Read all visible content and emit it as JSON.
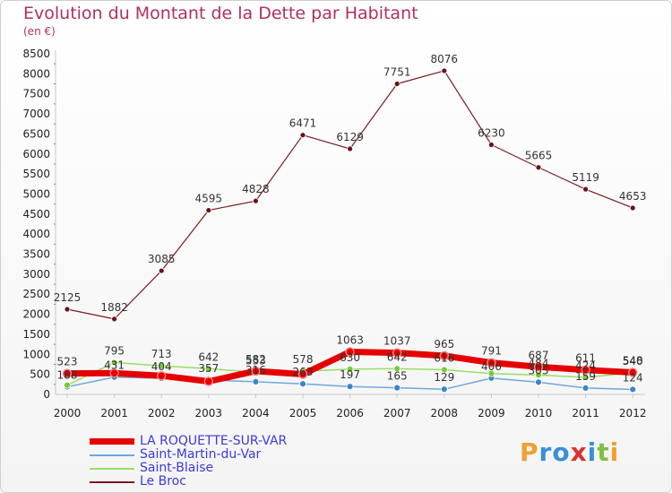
{
  "header": {
    "title": "Evolution du Montant de la Dette par Habitant",
    "unit": "(en €)"
  },
  "logo": {
    "letters": [
      "P",
      "r",
      "o",
      "x",
      "i",
      "t",
      "i"
    ],
    "colors": [
      "#f0a030",
      "#3a8fd8",
      "#3a8fd8",
      "#e03030",
      "#3a8fd8",
      "#80c040",
      "#f0a030"
    ]
  },
  "chart_data": {
    "type": "line",
    "title": "Evolution du Montant de la Dette par Habitant",
    "ylabel": "(en €)",
    "xlabel": "",
    "x": [
      "2000",
      "2001",
      "2002",
      "2003",
      "2004",
      "2005",
      "2006",
      "2007",
      "2008",
      "2009",
      "2010",
      "2011",
      "2012"
    ],
    "ylim": [
      0,
      8500
    ],
    "yticks": [
      0,
      500,
      1000,
      1500,
      2000,
      2500,
      3000,
      3500,
      4000,
      4500,
      5000,
      5500,
      6000,
      6500,
      7000,
      7500,
      8000,
      8500
    ],
    "grid": false,
    "legend_position": "bottom-left",
    "series": [
      {
        "name": "LA ROQUETTE-SUR-VAR",
        "color": "#e60000",
        "values": [
          523,
          531,
          465,
          324,
          582,
          503,
          1063,
          1037,
          965,
          791,
          687,
          611,
          548
        ],
        "labels": [
          "523",
          "",
          "",
          "",
          "582",
          "",
          "1063",
          "1037",
          "965",
          "791",
          "687",
          "611",
          "548"
        ]
      },
      {
        "name": "Saint-Martin-du-Var",
        "color": "#6fa8d8",
        "values": [
          188,
          431,
          404,
          357,
          316,
          263,
          197,
          165,
          129,
          406,
          305,
          159,
          124
        ],
        "labels": [
          "188",
          "431",
          "404",
          "357",
          "316",
          "263",
          "197",
          "165",
          "129",
          "406",
          "305",
          "159",
          "124"
        ]
      },
      {
        "name": "Saint-Blaise",
        "color": "#99dd66",
        "values": [
          230,
          795,
          713,
          642,
          553,
          578,
          630,
          642,
          616,
          520,
          484,
          424,
          540
        ],
        "labels": [
          "",
          "795",
          "713",
          "642",
          "553",
          "578",
          "630",
          "642",
          "616",
          "",
          "484",
          "424",
          "540"
        ]
      },
      {
        "name": "Le Broc",
        "color": "#7b1a22",
        "values": [
          2125,
          1882,
          3085,
          4595,
          4828,
          6471,
          6129,
          7751,
          8076,
          6230,
          5665,
          5119,
          4653
        ],
        "labels": [
          "2125",
          "1882",
          "3085",
          "4595",
          "4828",
          "6471",
          "6129",
          "7751",
          "8076",
          "6230",
          "5665",
          "5119",
          "4653"
        ]
      }
    ]
  }
}
